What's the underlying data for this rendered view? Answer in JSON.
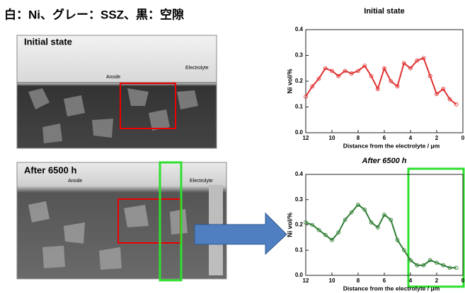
{
  "header": {
    "title": "白：Ni、グレー：SSZ、黒：空隙"
  },
  "images": [
    {
      "label": "Initial state",
      "anode": "Anode",
      "electrolyte": "Electrolyte"
    },
    {
      "label": "After 6500 h",
      "anode": "Anode",
      "electrolyte": "Electrolyte"
    }
  ],
  "chart_data": [
    {
      "type": "line",
      "title": "Initial state",
      "x_label": "Distance from the electrolyte / μm",
      "y_label": "Ni vol/%",
      "x": [
        12,
        11.5,
        11,
        10.5,
        10,
        9.5,
        9,
        8.5,
        8,
        7.5,
        7,
        6.5,
        6,
        5.5,
        5,
        4.5,
        4,
        3.5,
        3,
        2.5,
        2,
        1.5,
        1,
        0.5
      ],
      "series": [
        {
          "name": "Initial state",
          "color": "#e03030",
          "values": [
            0.14,
            0.18,
            0.21,
            0.25,
            0.24,
            0.22,
            0.24,
            0.23,
            0.24,
            0.26,
            0.22,
            0.17,
            0.25,
            0.2,
            0.18,
            0.27,
            0.25,
            0.28,
            0.29,
            0.22,
            0.15,
            0.17,
            0.13,
            0.11
          ]
        }
      ],
      "xlim": [
        12,
        0
      ],
      "xticks": [
        12,
        10,
        8,
        6,
        4,
        2,
        0
      ],
      "ylim": [
        0,
        0.4
      ],
      "yticks": [
        {
          "value": 0,
          "label": "0.0"
        },
        0.1,
        0.2,
        0.3,
        0.4
      ]
    },
    {
      "type": "line",
      "title": "After 6500 h",
      "x_label": "Distance from the electrolyte / μm",
      "y_label": "Ni vol/%",
      "x": [
        12,
        11.5,
        11,
        10.5,
        10,
        9.5,
        9,
        8.5,
        8,
        7.5,
        7,
        6.5,
        6,
        5.5,
        5,
        4.5,
        4,
        3.5,
        3,
        2.5,
        2,
        1.5,
        1,
        0.5
      ],
      "series": [
        {
          "name": "After 6500 h",
          "color": "#2e7d32",
          "values": [
            0.21,
            0.2,
            0.18,
            0.16,
            0.14,
            0.17,
            0.22,
            0.25,
            0.28,
            0.26,
            0.21,
            0.19,
            0.24,
            0.22,
            0.14,
            0.1,
            0.06,
            0.04,
            0.04,
            0.06,
            0.05,
            0.04,
            0.03,
            0.03
          ]
        }
      ],
      "xlim": [
        12,
        0
      ],
      "xticks": [
        12,
        10,
        8,
        6,
        4,
        2,
        0
      ],
      "ylim": [
        0,
        0.4
      ],
      "yticks": [
        {
          "value": 0,
          "label": "0.0"
        },
        0.1,
        0.2,
        0.3,
        0.4
      ]
    }
  ]
}
